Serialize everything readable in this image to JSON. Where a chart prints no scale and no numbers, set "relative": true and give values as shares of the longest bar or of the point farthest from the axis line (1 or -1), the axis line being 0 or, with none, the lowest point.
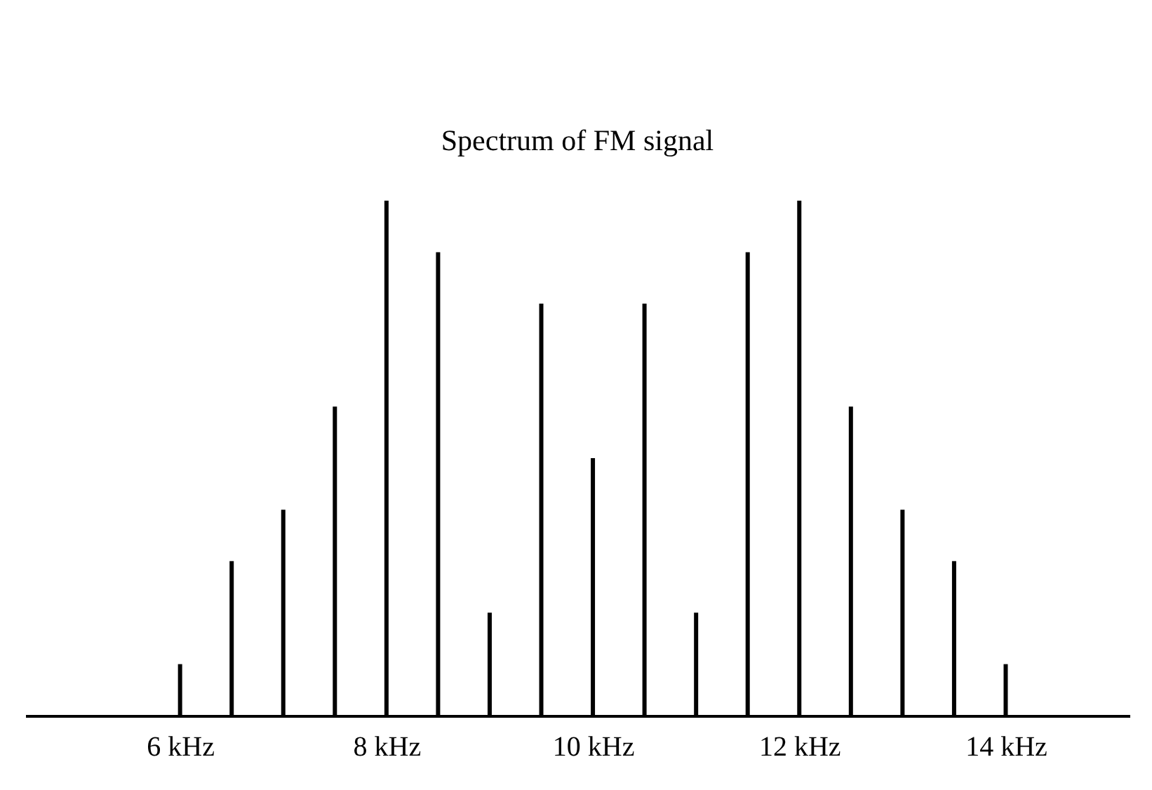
{
  "chart_data": {
    "type": "bar",
    "title": "Spectrum of FM signal",
    "relative": true,
    "x": [
      6,
      6.5,
      7,
      7.5,
      8,
      8.5,
      9,
      9.5,
      10,
      10.5,
      11,
      11.5,
      12,
      12.5,
      13,
      13.5,
      14
    ],
    "values": [
      0.1,
      0.3,
      0.4,
      0.6,
      1,
      0.9,
      0.2,
      0.8,
      0.5,
      0.8,
      0.2,
      0.9,
      1,
      0.6,
      0.4,
      0.3,
      0.1
    ],
    "color": "#000000",
    "xlim": [
      4.5,
      15.2
    ],
    "xticks": [
      {
        "value": 6,
        "label": "6 kHz"
      },
      {
        "value": 8,
        "label": "8 kHz"
      },
      {
        "value": 10,
        "label": "10 kHz"
      },
      {
        "value": 12,
        "label": "12 kHz"
      },
      {
        "value": 14,
        "label": "14 kHz"
      }
    ],
    "grid": false
  }
}
